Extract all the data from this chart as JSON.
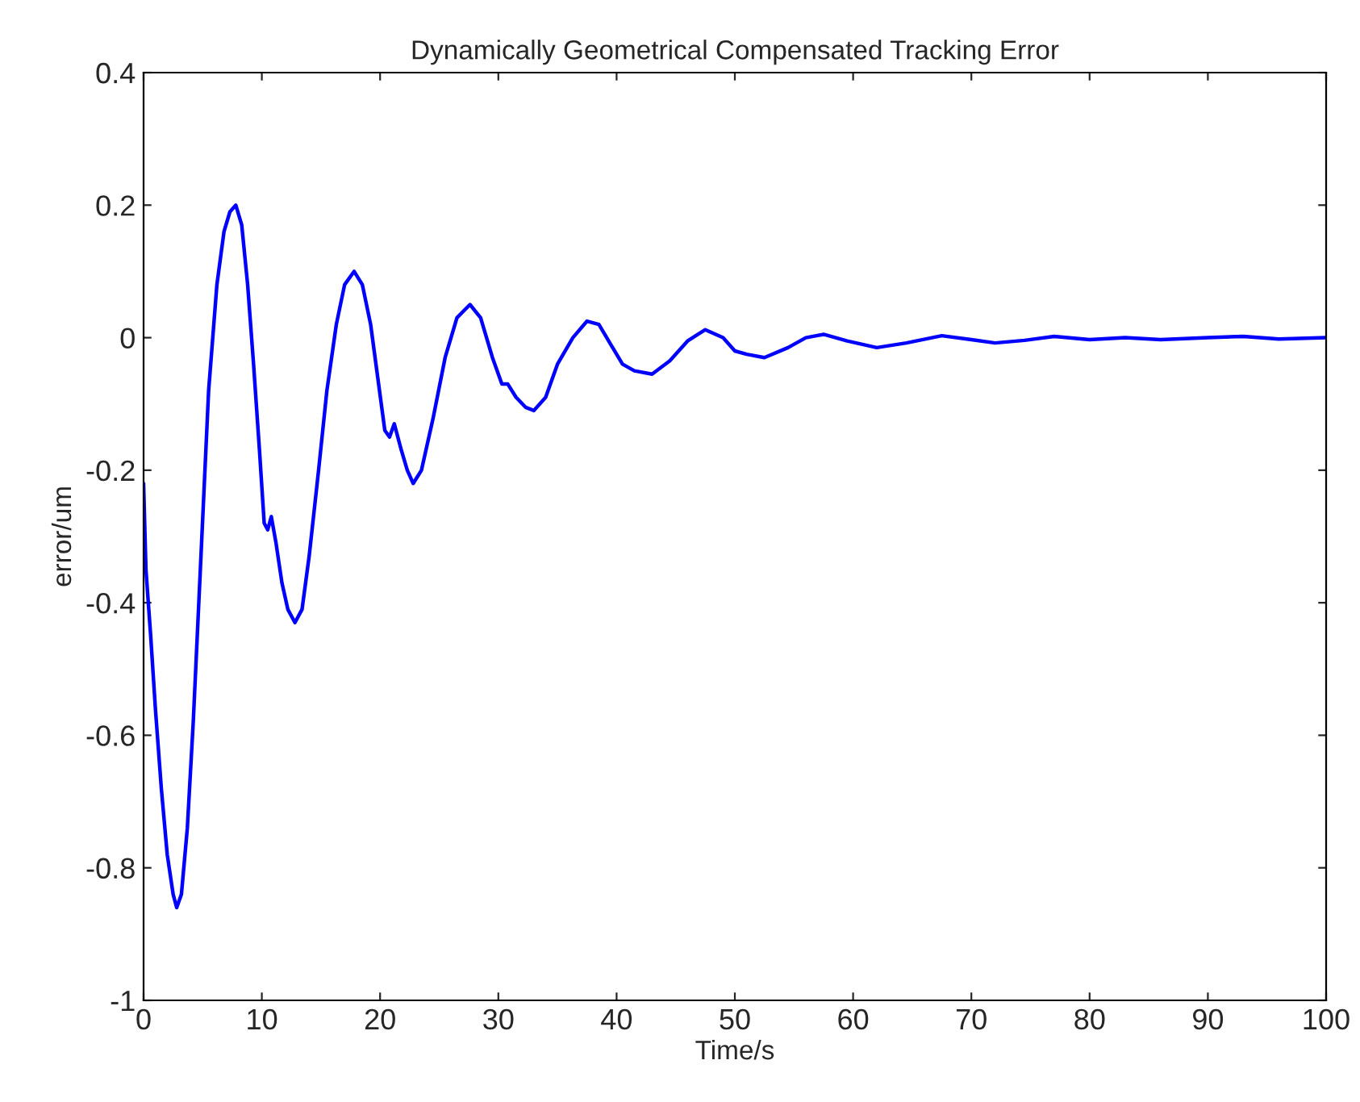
{
  "chart_data": {
    "type": "line",
    "title": "Dynamically Geometrical Compensated Tracking Error",
    "xlabel": "Time/s",
    "ylabel": "error/um",
    "series": [
      {
        "color": "#0000ff",
        "x": [
          0,
          0.2,
          0.6,
          1.0,
          1.5,
          2.0,
          2.5,
          2.8,
          3.2,
          3.7,
          4.2,
          4.8,
          5.5,
          6.2,
          6.8,
          7.3,
          7.8,
          8.3,
          8.8,
          9.3,
          9.8,
          10.2,
          10.5,
          10.8,
          11.2,
          11.7,
          12.2,
          12.8,
          13.4,
          14.0,
          14.8,
          15.5,
          16.3,
          17.0,
          17.8,
          18.5,
          19.2,
          19.8,
          20.4,
          20.8,
          21.2,
          21.8,
          22.3,
          22.8,
          23.5,
          24.5,
          25.5,
          26.5,
          27.6,
          28.5,
          29.5,
          30.3,
          30.8,
          31.5,
          32.3,
          33.0,
          34.0,
          35.0,
          36.3,
          37.5,
          38.5,
          39.5,
          40.5,
          41.5,
          43.0,
          44.5,
          46.0,
          47.5,
          49.0,
          50.0,
          51.0,
          52.5,
          54.5,
          56.0,
          57.5,
          59.5,
          62.0,
          64.5,
          67.5,
          70.0,
          72.0,
          74.5,
          77.0,
          80,
          83,
          86,
          90,
          93,
          96,
          100
        ],
        "values": [
          -0.22,
          -0.35,
          -0.45,
          -0.56,
          -0.68,
          -0.78,
          -0.84,
          -0.86,
          -0.84,
          -0.74,
          -0.58,
          -0.35,
          -0.08,
          0.08,
          0.16,
          0.19,
          0.2,
          0.17,
          0.08,
          -0.04,
          -0.17,
          -0.28,
          -0.29,
          -0.27,
          -0.31,
          -0.37,
          -0.41,
          -0.43,
          -0.41,
          -0.33,
          -0.2,
          -0.08,
          0.02,
          0.08,
          0.1,
          0.08,
          0.02,
          -0.06,
          -0.14,
          -0.15,
          -0.13,
          -0.17,
          -0.2,
          -0.22,
          -0.2,
          -0.12,
          -0.03,
          0.03,
          0.05,
          0.03,
          -0.03,
          -0.07,
          -0.07,
          -0.09,
          -0.105,
          -0.11,
          -0.09,
          -0.04,
          0.0,
          0.025,
          0.02,
          -0.01,
          -0.04,
          -0.05,
          -0.055,
          -0.035,
          -0.005,
          0.012,
          0.0,
          -0.02,
          -0.025,
          -0.03,
          -0.015,
          0.0,
          0.005,
          -0.005,
          -0.015,
          -0.008,
          0.003,
          -0.003,
          -0.008,
          -0.004,
          0.002,
          -0.003,
          0.0,
          -0.003,
          0.0,
          0.002,
          -0.002,
          0.0
        ]
      }
    ],
    "xlim": [
      0,
      100
    ],
    "ylim": [
      -1,
      0.4
    ],
    "xticks": [
      0,
      10,
      20,
      30,
      40,
      50,
      60,
      70,
      80,
      90,
      100
    ],
    "yticks": [
      {
        "value": -1,
        "label": "-1"
      },
      {
        "value": -0.8,
        "label": "-0.8"
      },
      {
        "value": -0.6,
        "label": "-0.6"
      },
      {
        "value": -0.4,
        "label": "-0.4"
      },
      {
        "value": -0.2,
        "label": "-0.2"
      },
      {
        "value": 0,
        "label": "0"
      },
      {
        "value": 0.2,
        "label": "0.2"
      },
      {
        "value": 0.4,
        "label": "0.4"
      }
    ],
    "grid": false,
    "legend": false
  }
}
